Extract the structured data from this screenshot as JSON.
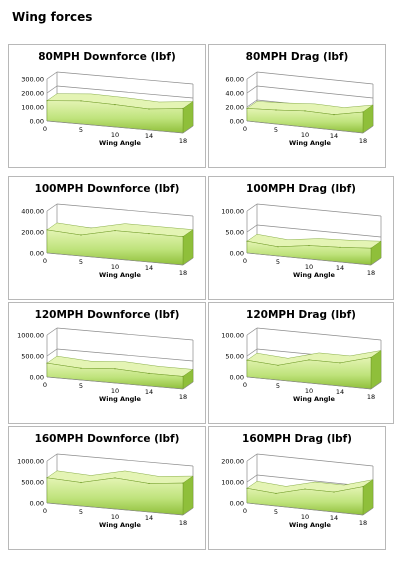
{
  "page": {
    "title": "Wing forces"
  },
  "colors": {
    "fill_light": "#e4f4b4",
    "fill_mid": "#bfe37c",
    "fill_dark": "#8fbf3a",
    "edge": "#6e9a25",
    "grid": "#8c8c8c"
  },
  "chart_data": [
    {
      "id": "c80df",
      "type": "area",
      "title": "80MPH Downforce (lbf)",
      "xlabel": "Wing Angle",
      "ylabel": "",
      "categories": [
        "0",
        "5",
        "10",
        "14",
        "18"
      ],
      "values": [
        145,
        165,
        160,
        150,
        175
      ],
      "ylim": [
        0,
        300
      ],
      "yticks": [
        "0.00",
        "100.00",
        "200.00",
        "300.00"
      ],
      "grid": true
    },
    {
      "id": "c80dr",
      "type": "area",
      "title": "80MPH Drag (lbf)",
      "xlabel": "Wing Angle",
      "ylabel": "",
      "categories": [
        "0",
        "5",
        "10",
        "14",
        "18"
      ],
      "values": [
        18,
        20,
        23,
        22,
        30
      ],
      "ylim": [
        0,
        60
      ],
      "yticks": [
        "0.00",
        "20.00",
        "40.00",
        "60.00"
      ],
      "grid": true
    },
    {
      "id": "c100df",
      "type": "area",
      "title": "100MPH Downforce (lbf)",
      "xlabel": "Wing Angle",
      "ylabel": "",
      "categories": [
        "0",
        "5",
        "10",
        "14",
        "18"
      ],
      "values": [
        220,
        200,
        270,
        270,
        270
      ],
      "ylim": [
        0,
        400
      ],
      "yticks": [
        "0.00",
        "200.00",
        "400.00"
      ],
      "grid": true
    },
    {
      "id": "c100dr",
      "type": "area",
      "title": "100MPH Drag (lbf)",
      "xlabel": "Wing Angle",
      "ylabel": "",
      "categories": [
        "0",
        "5",
        "10",
        "14",
        "18"
      ],
      "values": [
        28,
        22,
        32,
        35,
        40
      ],
      "ylim": [
        0,
        100
      ],
      "yticks": [
        "0.00",
        "50.00",
        "100.00"
      ],
      "grid": true
    },
    {
      "id": "c120df",
      "type": "area",
      "title": "120MPH Downforce (lbf)",
      "xlabel": "Wing Angle",
      "ylabel": "",
      "categories": [
        "0",
        "5",
        "10",
        "14",
        "18"
      ],
      "values": [
        330,
        280,
        340,
        300,
        300
      ],
      "ylim": [
        0,
        1000
      ],
      "yticks": [
        "0.00",
        "500.00",
        "1000.00"
      ],
      "grid": true
    },
    {
      "id": "c120dr",
      "type": "area",
      "title": "120MPH Drag (lbf)",
      "xlabel": "Wing Angle",
      "ylabel": "",
      "categories": [
        "0",
        "5",
        "10",
        "14",
        "18"
      ],
      "values": [
        40,
        35,
        55,
        55,
        75
      ],
      "ylim": [
        0,
        100
      ],
      "yticks": [
        "0.00",
        "50.00",
        "100.00"
      ],
      "grid": true
    },
    {
      "id": "c160df",
      "type": "area",
      "title": "160MPH Downforce (lbf)",
      "xlabel": "Wing Angle",
      "ylabel": "",
      "categories": [
        "0",
        "5",
        "10",
        "14",
        "18"
      ],
      "values": [
        600,
        560,
        740,
        680,
        760
      ],
      "ylim": [
        0,
        1000
      ],
      "yticks": [
        "0.00",
        "500.00",
        "1000.00"
      ],
      "grid": true
    },
    {
      "id": "c160dr",
      "type": "area",
      "title": "160MPH Drag (lbf)",
      "xlabel": "Wing Angle",
      "ylabel": "",
      "categories": [
        "0",
        "5",
        "10",
        "14",
        "18"
      ],
      "values": [
        70,
        60,
        95,
        95,
        135
      ],
      "ylim": [
        0,
        200
      ],
      "yticks": [
        "0.00",
        "100.00",
        "200.00"
      ],
      "grid": true
    }
  ]
}
